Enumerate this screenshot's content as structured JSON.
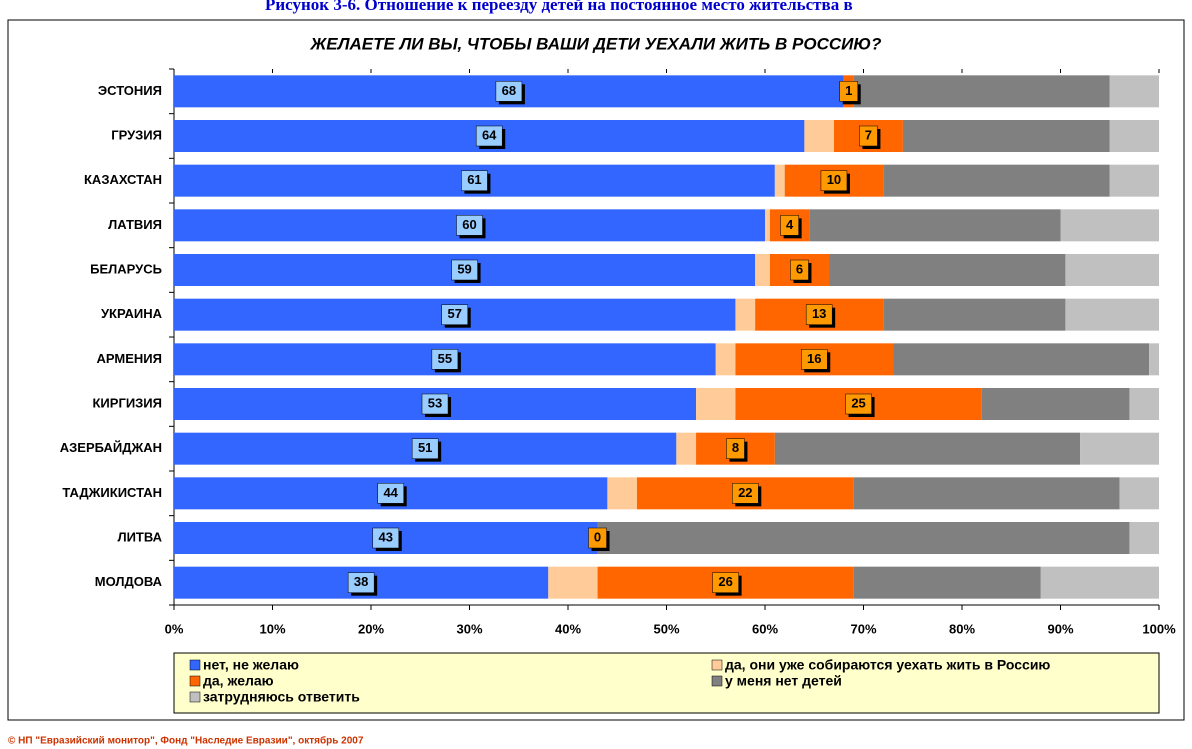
{
  "header": {
    "title": "Рисунок 3-6. Отношение к переезду детей на постоянное место жительства в"
  },
  "chart_data": {
    "type": "stacked_bar_horizontal",
    "title": "ЖЕЛАЕТЕ ЛИ ВЫ, ЧТОБЫ ВАШИ ДЕТИ УЕХАЛИ ЖИТЬ В РОССИЮ?",
    "categories": [
      "ЭСТОНИЯ",
      "ГРУЗИЯ",
      "КАЗАХСТАН",
      "ЛАТВИЯ",
      "БЕЛАРУСЬ",
      "УКРАИНА",
      "АРМЕНИЯ",
      "КИРГИЗИЯ",
      "АЗЕРБАЙДЖАН",
      "ТАДЖИКИСТАН",
      "ЛИТВА",
      "МОЛДОВА"
    ],
    "series": [
      {
        "name": "нет, не желаю",
        "color": "#3366ff",
        "data_labels": true,
        "values": [
          68,
          64,
          61,
          60,
          59,
          57,
          55,
          53,
          51,
          44,
          43,
          38
        ]
      },
      {
        "name": "да, они уже собираются уехать жить в Россию",
        "color": "#ffcc99",
        "values": [
          0,
          3,
          1,
          0.5,
          1.5,
          2,
          2,
          4,
          2,
          3,
          0,
          5
        ]
      },
      {
        "name": "да, желаю",
        "color": "#ff6600",
        "data_labels": true,
        "values": [
          1,
          7,
          10,
          4,
          6,
          13,
          16,
          25,
          8,
          22,
          0,
          26
        ]
      },
      {
        "name": "у меня нет детей",
        "color": "#808080",
        "values": [
          26,
          21,
          23,
          25.5,
          24,
          18.5,
          26,
          15,
          31,
          27,
          54,
          19
        ]
      },
      {
        "name": "затрудняюсь ответить",
        "color": "#c0c0c0",
        "values": [
          5,
          5,
          5,
          10,
          9.5,
          9.5,
          1,
          3,
          8,
          4,
          3,
          12
        ]
      }
    ],
    "xlim": [
      0,
      100
    ],
    "xticks": [
      {
        "value": 0,
        "label": "0%"
      },
      {
        "value": 10,
        "label": "10%"
      },
      {
        "value": 20,
        "label": "20%"
      },
      {
        "value": 30,
        "label": "30%"
      },
      {
        "value": 40,
        "label": "40%"
      },
      {
        "value": 50,
        "label": "50%"
      },
      {
        "value": 60,
        "label": "60%"
      },
      {
        "value": 70,
        "label": "70%"
      },
      {
        "value": 80,
        "label": "80%"
      },
      {
        "value": 90,
        "label": "90%"
      },
      {
        "value": 100,
        "label": "100%"
      }
    ],
    "legend": "bottom",
    "source": "© НП \"Евразийский монитор\", Фонд \"Наследие Евразии\", октябрь 2007"
  }
}
